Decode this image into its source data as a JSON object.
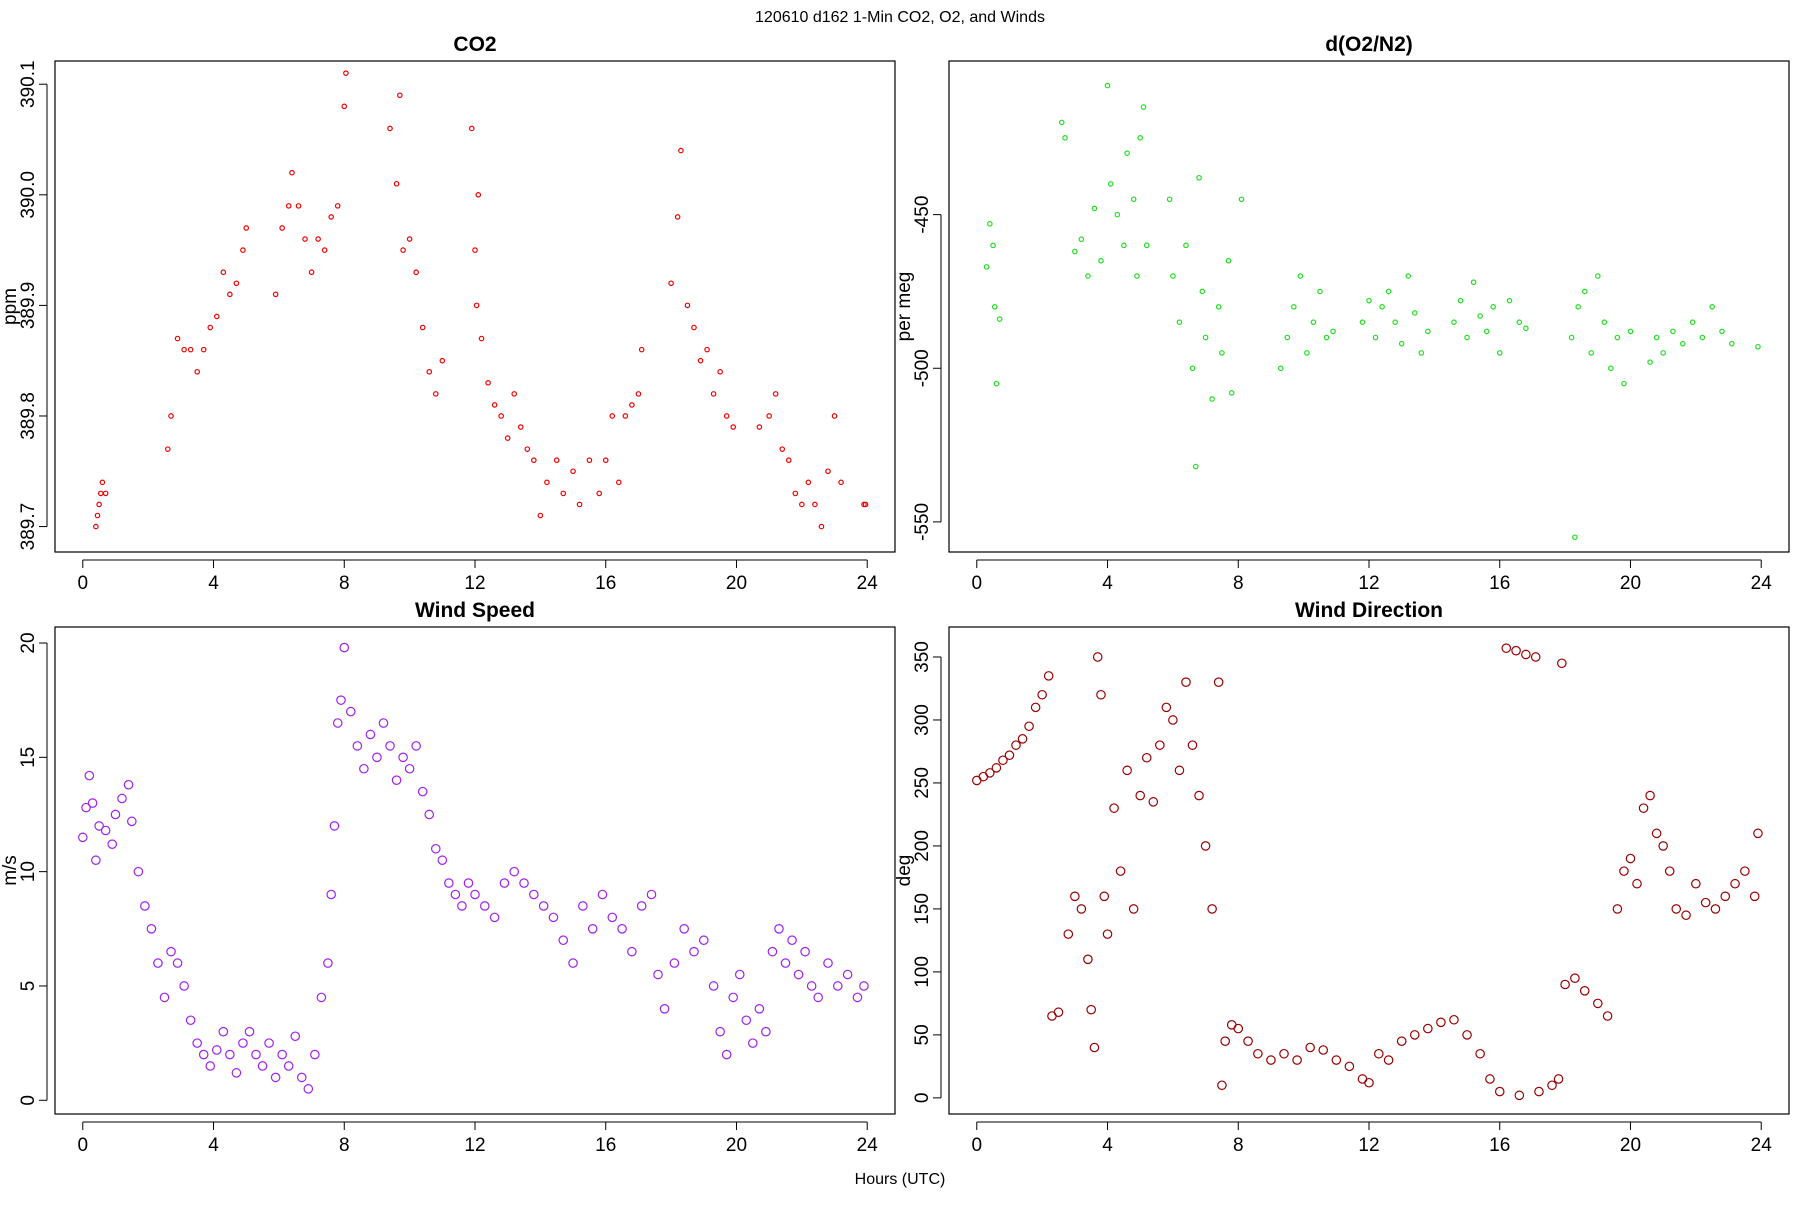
{
  "title": "120610   d162   1-Min CO2, O2, and Winds",
  "xlabel": "Hours (UTC)",
  "chart_data": [
    {
      "type": "scatter",
      "title": "CO2",
      "ylabel": "ppm",
      "color": "#ee0000",
      "marker_size": 2.2,
      "xlim": [
        -0.85,
        24.85
      ],
      "ylim": [
        389.677,
        390.121
      ],
      "xticks": [
        0,
        4,
        8,
        12,
        16,
        20,
        24
      ],
      "yticks": [
        389.7,
        389.8,
        389.9,
        {
          "value": 390.0,
          "label": "390.0"
        },
        390.1
      ],
      "x": [
        0.4,
        0.45,
        0.5,
        0.55,
        0.6,
        0.7,
        2.6,
        2.7,
        2.9,
        3.1,
        3.3,
        3.5,
        3.7,
        3.9,
        4.1,
        4.3,
        4.5,
        4.7,
        4.9,
        5.0,
        5.9,
        6.1,
        6.3,
        6.4,
        6.6,
        6.8,
        7.0,
        7.2,
        7.4,
        7.6,
        7.8,
        8.0,
        8.05,
        9.4,
        9.6,
        9.7,
        9.8,
        10.0,
        10.2,
        10.4,
        10.6,
        10.8,
        11.0,
        11.9,
        12.0,
        12.05,
        12.1,
        12.2,
        12.4,
        12.6,
        12.8,
        13.0,
        13.2,
        13.4,
        13.6,
        13.8,
        14.0,
        14.2,
        14.5,
        14.7,
        15.0,
        15.2,
        15.5,
        15.8,
        16.0,
        16.2,
        16.4,
        16.6,
        16.8,
        17.0,
        17.1,
        18.0,
        18.2,
        18.3,
        18.5,
        18.7,
        18.9,
        19.1,
        19.3,
        19.5,
        19.7,
        19.9,
        20.7,
        21.0,
        21.2,
        21.4,
        21.6,
        21.8,
        22.0,
        22.2,
        22.4,
        22.6,
        22.8,
        23.0,
        23.2,
        23.9,
        23.95
      ],
      "values": [
        389.7,
        389.71,
        389.72,
        389.73,
        389.74,
        389.73,
        389.77,
        389.8,
        389.87,
        389.86,
        389.86,
        389.84,
        389.86,
        389.88,
        389.89,
        389.93,
        389.91,
        389.92,
        389.95,
        389.97,
        389.91,
        389.97,
        389.99,
        390.02,
        389.99,
        389.96,
        389.93,
        389.96,
        389.95,
        389.98,
        389.99,
        390.08,
        390.11,
        390.06,
        390.01,
        390.09,
        389.95,
        389.96,
        389.93,
        389.88,
        389.84,
        389.82,
        389.85,
        390.06,
        389.95,
        389.9,
        390.0,
        389.87,
        389.83,
        389.81,
        389.8,
        389.78,
        389.82,
        389.79,
        389.77,
        389.76,
        389.71,
        389.74,
        389.76,
        389.73,
        389.75,
        389.72,
        389.76,
        389.73,
        389.76,
        389.8,
        389.74,
        389.8,
        389.81,
        389.82,
        389.86,
        389.92,
        389.98,
        390.04,
        389.9,
        389.88,
        389.85,
        389.86,
        389.82,
        389.84,
        389.8,
        389.79,
        389.79,
        389.8,
        389.82,
        389.77,
        389.76,
        389.73,
        389.72,
        389.74,
        389.72,
        389.7,
        389.75,
        389.8,
        389.74,
        389.72,
        389.72
      ]
    },
    {
      "type": "scatter",
      "title": "d(O2/N2)",
      "ylabel": "per meg",
      "color": "#22dd22",
      "marker_size": 2.2,
      "xlim": [
        -0.85,
        24.85
      ],
      "ylim": [
        -559.8,
        -400
      ],
      "xticks": [
        0,
        4,
        8,
        12,
        16,
        20,
        24
      ],
      "yticks": [
        -550,
        -500,
        -450
      ],
      "x": [
        0.3,
        0.4,
        0.5,
        0.55,
        0.6,
        0.7,
        2.6,
        2.7,
        3.0,
        3.2,
        3.4,
        3.6,
        3.8,
        4.0,
        4.1,
        4.3,
        4.5,
        4.6,
        4.8,
        4.9,
        5.0,
        5.1,
        5.2,
        5.9,
        6.0,
        6.2,
        6.4,
        6.6,
        6.7,
        6.8,
        6.9,
        7.0,
        7.2,
        7.4,
        7.5,
        7.7,
        7.8,
        8.1,
        9.3,
        9.5,
        9.7,
        9.9,
        10.1,
        10.3,
        10.5,
        10.7,
        10.9,
        11.8,
        12.0,
        12.2,
        12.4,
        12.6,
        12.8,
        13.0,
        13.2,
        13.4,
        13.6,
        13.8,
        14.6,
        14.8,
        15.0,
        15.2,
        15.4,
        15.6,
        15.8,
        16.0,
        16.3,
        16.6,
        16.8,
        18.2,
        18.3,
        18.4,
        18.6,
        18.8,
        19.0,
        19.2,
        19.4,
        19.6,
        19.8,
        20.0,
        20.6,
        20.8,
        21.0,
        21.3,
        21.6,
        21.9,
        22.2,
        22.5,
        22.8,
        23.1,
        23.9
      ],
      "values": [
        -467,
        -453,
        -460,
        -480,
        -505,
        -484,
        -420,
        -425,
        -462,
        -458,
        -470,
        -448,
        -465,
        -408,
        -440,
        -450,
        -460,
        -430,
        -445,
        -470,
        -425,
        -415,
        -460,
        -445,
        -470,
        -485,
        -460,
        -500,
        -532,
        -438,
        -475,
        -490,
        -510,
        -480,
        -495,
        -465,
        -508,
        -445,
        -500,
        -490,
        -480,
        -470,
        -495,
        -485,
        -475,
        -490,
        -488,
        -485,
        -478,
        -490,
        -480,
        -475,
        -485,
        -492,
        -470,
        -482,
        -495,
        -488,
        -485,
        -478,
        -490,
        -472,
        -483,
        -488,
        -480,
        -495,
        -478,
        -485,
        -487,
        -490,
        -555,
        -480,
        -475,
        -495,
        -470,
        -485,
        -500,
        -490,
        -505,
        -488,
        -498,
        -490,
        -495,
        -488,
        -492,
        -485,
        -490,
        -480,
        -488,
        -492,
        -493
      ]
    },
    {
      "type": "scatter",
      "title": "Wind Speed",
      "ylabel": "m/s",
      "color": "#a020f0",
      "marker_size": 4.2,
      "xlim": [
        -0.85,
        24.85
      ],
      "ylim": [
        -0.6,
        20.7
      ],
      "xticks": [
        0,
        4,
        8,
        12,
        16,
        20,
        24
      ],
      "yticks": [
        0,
        5,
        10,
        15,
        20
      ],
      "x": [
        0.0,
        0.1,
        0.2,
        0.3,
        0.4,
        0.5,
        0.7,
        0.9,
        1.0,
        1.2,
        1.4,
        1.5,
        1.7,
        1.9,
        2.1,
        2.3,
        2.5,
        2.7,
        2.9,
        3.1,
        3.3,
        3.5,
        3.7,
        3.9,
        4.1,
        4.3,
        4.5,
        4.7,
        4.9,
        5.1,
        5.3,
        5.5,
        5.7,
        5.9,
        6.1,
        6.3,
        6.5,
        6.7,
        6.9,
        7.1,
        7.3,
        7.5,
        7.6,
        7.7,
        7.8,
        7.9,
        8.0,
        8.2,
        8.4,
        8.6,
        8.8,
        9.0,
        9.2,
        9.4,
        9.6,
        9.8,
        10.0,
        10.2,
        10.4,
        10.6,
        10.8,
        11.0,
        11.2,
        11.4,
        11.6,
        11.8,
        12.0,
        12.3,
        12.6,
        12.9,
        13.2,
        13.5,
        13.8,
        14.1,
        14.4,
        14.7,
        15.0,
        15.3,
        15.6,
        15.9,
        16.2,
        16.5,
        16.8,
        17.1,
        17.4,
        17.6,
        17.8,
        18.1,
        18.4,
        18.7,
        19.0,
        19.3,
        19.5,
        19.7,
        19.9,
        20.1,
        20.3,
        20.5,
        20.7,
        20.9,
        21.1,
        21.3,
        21.5,
        21.7,
        21.9,
        22.1,
        22.3,
        22.5,
        22.8,
        23.1,
        23.4,
        23.7,
        23.9
      ],
      "values": [
        11.5,
        12.8,
        14.2,
        13.0,
        10.5,
        12.0,
        11.8,
        11.2,
        12.5,
        13.2,
        13.8,
        12.2,
        10.0,
        8.5,
        7.5,
        6.0,
        4.5,
        6.5,
        6.0,
        5.0,
        3.5,
        2.5,
        2.0,
        1.5,
        2.2,
        3.0,
        2.0,
        1.2,
        2.5,
        3.0,
        2.0,
        1.5,
        2.5,
        1.0,
        2.0,
        1.5,
        2.8,
        1.0,
        0.5,
        2.0,
        4.5,
        6.0,
        9.0,
        12.0,
        16.5,
        17.5,
        19.8,
        17.0,
        15.5,
        14.5,
        16.0,
        15.0,
        16.5,
        15.5,
        14.0,
        15.0,
        14.5,
        15.5,
        13.5,
        12.5,
        11.0,
        10.5,
        9.5,
        9.0,
        8.5,
        9.5,
        9.0,
        8.5,
        8.0,
        9.5,
        10.0,
        9.5,
        9.0,
        8.5,
        8.0,
        7.0,
        6.0,
        8.5,
        7.5,
        9.0,
        8.0,
        7.5,
        6.5,
        8.5,
        9.0,
        5.5,
        4.0,
        6.0,
        7.5,
        6.5,
        7.0,
        5.0,
        3.0,
        2.0,
        4.5,
        5.5,
        3.5,
        2.5,
        4.0,
        3.0,
        6.5,
        7.5,
        6.0,
        7.0,
        5.5,
        6.5,
        5.0,
        4.5,
        6.0,
        5.0,
        5.5,
        4.5,
        5.0
      ]
    },
    {
      "type": "scatter",
      "title": "Wind Direction",
      "ylabel": "deg",
      "color": "#9b0000",
      "marker_size": 4.2,
      "xlim": [
        -0.85,
        24.85
      ],
      "ylim": [
        -12.8,
        373.8
      ],
      "xticks": [
        0,
        4,
        8,
        12,
        16,
        20,
        24
      ],
      "yticks": [
        0,
        50,
        100,
        150,
        200,
        250,
        300,
        350
      ],
      "x": [
        0.0,
        0.2,
        0.4,
        0.6,
        0.8,
        1.0,
        1.2,
        1.4,
        1.6,
        1.8,
        2.0,
        2.2,
        2.3,
        2.5,
        2.8,
        3.0,
        3.2,
        3.4,
        3.5,
        3.6,
        3.7,
        3.8,
        3.9,
        4.0,
        4.2,
        4.4,
        4.6,
        4.8,
        5.0,
        5.2,
        5.4,
        5.6,
        5.8,
        6.0,
        6.2,
        6.4,
        6.6,
        6.8,
        7.0,
        7.2,
        7.4,
        7.5,
        7.6,
        7.8,
        8.0,
        8.3,
        8.6,
        9.0,
        9.4,
        9.8,
        10.2,
        10.6,
        11.0,
        11.4,
        11.8,
        12.0,
        12.3,
        12.6,
        13.0,
        13.4,
        13.8,
        14.2,
        14.6,
        15.0,
        15.4,
        15.7,
        16.0,
        16.2,
        16.5,
        16.6,
        16.8,
        17.1,
        17.2,
        17.6,
        17.8,
        17.9,
        18.0,
        18.3,
        18.6,
        19.0,
        19.3,
        19.6,
        19.8,
        20.0,
        20.2,
        20.4,
        20.6,
        20.8,
        21.0,
        21.2,
        21.4,
        21.7,
        22.0,
        22.3,
        22.6,
        22.9,
        23.2,
        23.5,
        23.8,
        23.9
      ],
      "values": [
        252,
        255,
        258,
        262,
        268,
        272,
        280,
        285,
        295,
        310,
        320,
        335,
        65,
        68,
        130,
        160,
        150,
        110,
        70,
        40,
        350,
        320,
        160,
        130,
        230,
        180,
        260,
        150,
        240,
        270,
        235,
        280,
        310,
        300,
        260,
        330,
        280,
        240,
        200,
        150,
        330,
        10,
        45,
        58,
        55,
        45,
        35,
        30,
        35,
        30,
        40,
        38,
        30,
        25,
        15,
        12,
        35,
        30,
        45,
        50,
        55,
        60,
        62,
        50,
        35,
        15,
        5,
        357,
        355,
        2,
        352,
        350,
        5,
        10,
        15,
        345,
        90,
        95,
        85,
        75,
        65,
        150,
        180,
        190,
        170,
        230,
        240,
        210,
        200,
        180,
        150,
        145,
        170,
        155,
        150,
        160,
        170,
        180,
        160,
        210
      ]
    }
  ]
}
